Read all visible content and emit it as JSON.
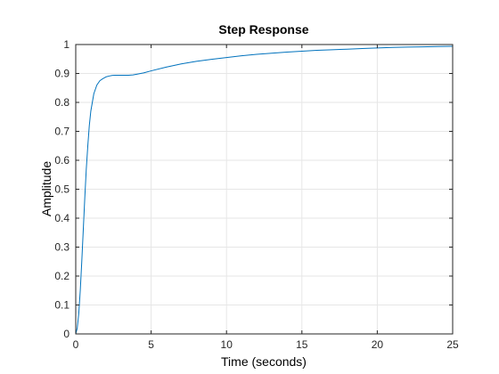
{
  "chart_data": {
    "type": "line",
    "title": "Step Response",
    "xlabel": "Time (seconds)",
    "ylabel": "Amplitude",
    "xlim": [
      0,
      25
    ],
    "ylim": [
      0,
      1
    ],
    "grid": true,
    "x_ticks": [
      0,
      5,
      10,
      15,
      20,
      25
    ],
    "y_ticks": [
      0,
      0.1,
      0.2,
      0.3,
      0.4,
      0.5,
      0.6,
      0.7,
      0.8,
      0.9,
      1
    ],
    "x_tick_labels": [
      "0",
      "5",
      "10",
      "15",
      "20",
      "25"
    ],
    "y_tick_labels": [
      "0",
      "0.1",
      "0.2",
      "0.3",
      "0.4",
      "0.5",
      "0.6",
      "0.7",
      "0.8",
      "0.9",
      "1"
    ],
    "reference_line": {
      "y": 1,
      "style": "dotted"
    },
    "series": [
      {
        "color": "#0072BD",
        "x": [
          0,
          0.1,
          0.2,
          0.3,
          0.4,
          0.5,
          0.6,
          0.7,
          0.8,
          0.9,
          1.0,
          1.2,
          1.4,
          1.6,
          1.8,
          2.0,
          2.2,
          2.4,
          2.6,
          2.8,
          3.0,
          3.2,
          3.5,
          3.8,
          4.0,
          4.5,
          5,
          6,
          7,
          8,
          9,
          10,
          11,
          12,
          13,
          14,
          15,
          16,
          17,
          18,
          19,
          20,
          21,
          22,
          23,
          24,
          25
        ],
        "y": [
          0,
          0.02,
          0.07,
          0.15,
          0.25,
          0.36,
          0.47,
          0.57,
          0.65,
          0.72,
          0.77,
          0.83,
          0.86,
          0.875,
          0.882,
          0.888,
          0.891,
          0.893,
          0.894,
          0.894,
          0.894,
          0.894,
          0.894,
          0.895,
          0.897,
          0.902,
          0.909,
          0.922,
          0.933,
          0.942,
          0.949,
          0.955,
          0.961,
          0.966,
          0.97,
          0.974,
          0.977,
          0.98,
          0.982,
          0.984,
          0.986,
          0.988,
          0.99,
          0.991,
          0.992,
          0.993,
          0.994
        ]
      }
    ]
  }
}
